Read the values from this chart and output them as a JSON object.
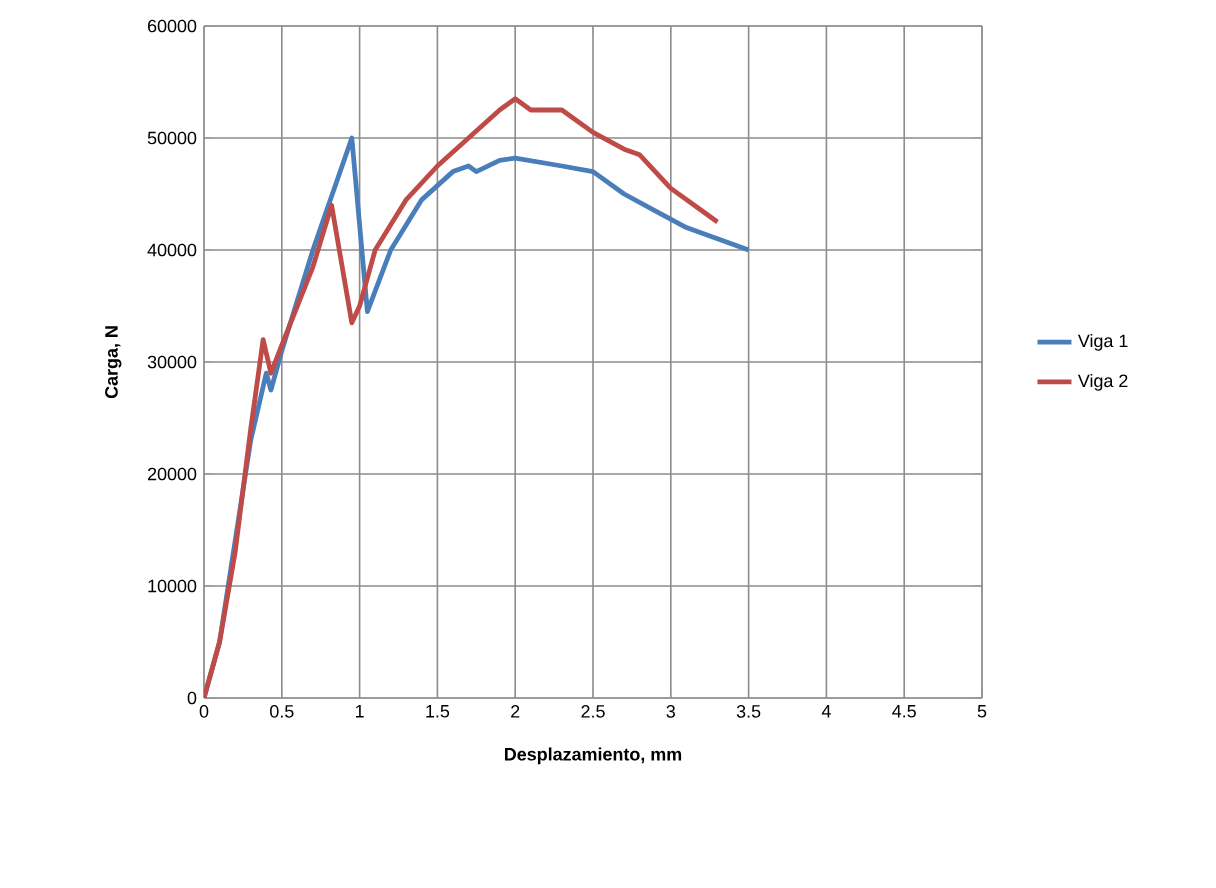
{
  "chart_data": {
    "type": "line",
    "xlabel": "Desplazamiento, mm",
    "ylabel": "Carga, N",
    "xlim": [
      0,
      5
    ],
    "xticks": [
      0,
      0.5,
      1,
      1.5,
      2,
      2.5,
      3,
      3.5,
      4,
      4.5,
      5
    ],
    "ylim": [
      0,
      60000
    ],
    "yticks": [
      0,
      10000,
      20000,
      30000,
      40000,
      50000,
      60000
    ],
    "grid": true,
    "legend": "right",
    "marker": "none",
    "line_style": "solid",
    "series": [
      {
        "name": "Viga 1",
        "color": "#4a7ebb",
        "x": [
          0,
          0.1,
          0.2,
          0.3,
          0.4,
          0.43,
          0.5,
          0.7,
          0.95,
          1.05,
          1.2,
          1.4,
          1.6,
          1.7,
          1.75,
          1.9,
          2.0,
          2.3,
          2.5,
          2.7,
          2.9,
          3.1,
          3.3,
          3.5
        ],
        "values": [
          0,
          5000,
          14000,
          23000,
          29000,
          27500,
          31000,
          40000,
          50000,
          34500,
          40000,
          44500,
          47000,
          47500,
          47000,
          48000,
          48200,
          47500,
          47000,
          45000,
          43500,
          42000,
          41000,
          40000
        ]
      },
      {
        "name": "Viga 2",
        "color": "#be4b48",
        "x": [
          0,
          0.1,
          0.2,
          0.3,
          0.38,
          0.43,
          0.5,
          0.7,
          0.82,
          0.95,
          1.0,
          1.1,
          1.3,
          1.5,
          1.7,
          1.9,
          2.0,
          2.1,
          2.3,
          2.5,
          2.7,
          2.8,
          3.0,
          3.2,
          3.3
        ],
        "values": [
          0,
          5000,
          13000,
          24000,
          32000,
          29000,
          31500,
          38500,
          44000,
          33500,
          35000,
          40000,
          44500,
          47500,
          50000,
          52500,
          53500,
          52500,
          52500,
          50500,
          49000,
          48500,
          45500,
          43500,
          42500
        ]
      }
    ]
  }
}
